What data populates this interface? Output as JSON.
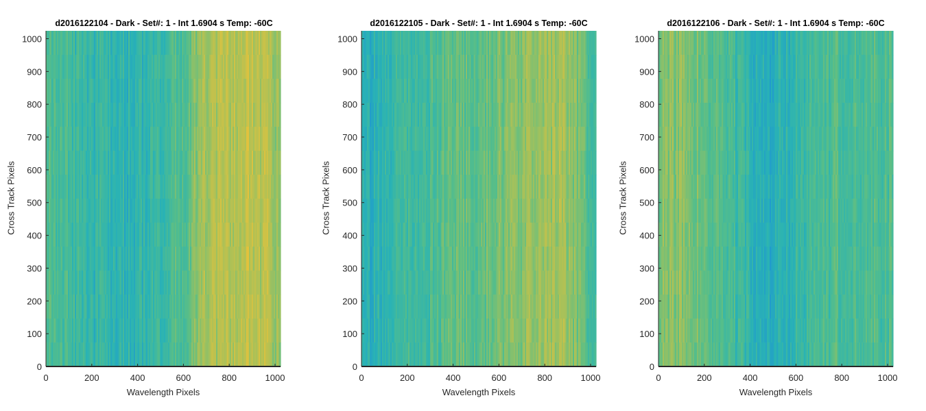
{
  "chart_data": [
    {
      "type": "heatmap",
      "title": "d2016122104 - Dark - Set#: 1 - Int 1.6904 s Temp: -60C",
      "xlabel": "Wavelength Pixels",
      "ylabel": "Cross Track Pixels",
      "xlim": [
        0,
        1024
      ],
      "ylim": [
        0,
        1024
      ],
      "xticks": [
        0,
        200,
        400,
        600,
        800,
        1000
      ],
      "yticks": [
        0,
        100,
        200,
        300,
        400,
        500,
        600,
        700,
        800,
        900,
        1000
      ],
      "colormap": [
        "#1f98d0",
        "#2ab3b4",
        "#58be88",
        "#a6c15a",
        "#e3c23c"
      ],
      "column_profile": {
        "x": [
          0,
          100,
          200,
          300,
          400,
          500,
          600,
          650,
          700,
          750,
          800,
          850,
          900,
          950,
          1000,
          1024
        ],
        "level": [
          0.45,
          0.38,
          0.3,
          0.25,
          0.28,
          0.35,
          0.48,
          0.62,
          0.75,
          0.8,
          0.82,
          0.83,
          0.84,
          0.8,
          0.72,
          0.65
        ]
      }
    },
    {
      "type": "heatmap",
      "title": "d2016122105 - Dark - Set#: 1 - Int 1.6904 s Temp: -60C",
      "xlabel": "Wavelength Pixels",
      "ylabel": "Cross Track Pixels",
      "xlim": [
        0,
        1024
      ],
      "ylim": [
        0,
        1024
      ],
      "xticks": [
        0,
        200,
        400,
        600,
        800,
        1000
      ],
      "yticks": [
        0,
        100,
        200,
        300,
        400,
        500,
        600,
        700,
        800,
        900,
        1000
      ],
      "colormap": [
        "#1f98d0",
        "#2ab3b4",
        "#58be88",
        "#a6c15a",
        "#e3c23c"
      ],
      "column_profile": {
        "x": [
          0,
          50,
          100,
          200,
          300,
          400,
          500,
          600,
          650,
          700,
          750,
          800,
          850,
          900,
          950,
          1000,
          1024
        ],
        "level": [
          0.18,
          0.22,
          0.28,
          0.35,
          0.42,
          0.5,
          0.52,
          0.58,
          0.64,
          0.68,
          0.7,
          0.72,
          0.74,
          0.7,
          0.58,
          0.48,
          0.45
        ]
      }
    },
    {
      "type": "heatmap",
      "title": "d2016122106 - Dark - Set#: 1 - Int 1.6904 s Temp: -60C",
      "xlabel": "Wavelength Pixels",
      "ylabel": "Cross Track Pixels",
      "xlim": [
        0,
        1024
      ],
      "ylim": [
        0,
        1024
      ],
      "xticks": [
        0,
        200,
        400,
        600,
        800,
        1000
      ],
      "yticks": [
        0,
        100,
        200,
        300,
        400,
        500,
        600,
        700,
        800,
        900,
        1000
      ],
      "colormap": [
        "#1f98d0",
        "#2ab3b4",
        "#58be88",
        "#a6c15a",
        "#e3c23c"
      ],
      "column_profile": {
        "x": [
          0,
          50,
          100,
          150,
          200,
          300,
          400,
          450,
          500,
          550,
          600,
          700,
          800,
          900,
          1000,
          1024
        ],
        "level": [
          0.6,
          0.66,
          0.66,
          0.62,
          0.55,
          0.42,
          0.28,
          0.2,
          0.2,
          0.25,
          0.33,
          0.42,
          0.45,
          0.45,
          0.45,
          0.46
        ]
      }
    }
  ]
}
